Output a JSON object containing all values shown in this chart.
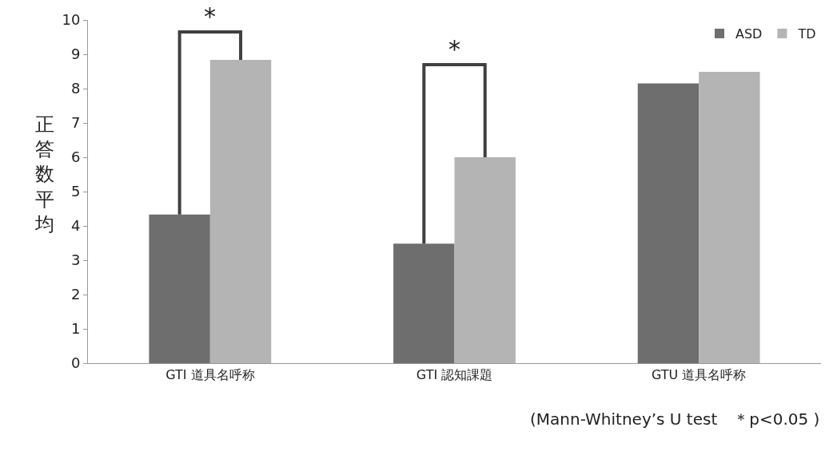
{
  "chart_data": {
    "type": "bar",
    "categories": [
      "GTI 道具名呼称",
      "GTI 認知課題",
      "GTU 道具名呼称"
    ],
    "series": [
      {
        "name": "ASD",
        "color": "#6e6e6e",
        "values": [
          4.33,
          3.48,
          8.15
        ]
      },
      {
        "name": "TD",
        "color": "#b4b4b4",
        "values": [
          8.84,
          6.0,
          8.49
        ]
      }
    ],
    "ylabel": "正答数平均",
    "ylim": [
      0,
      10
    ],
    "yticks": [
      0,
      1,
      2,
      3,
      4,
      5,
      6,
      7,
      8,
      9,
      10
    ],
    "legend": "top right",
    "annotations": [
      "*",
      "*",
      "(Mann-Whitney’s U test　＊p<0.05 )"
    ]
  }
}
